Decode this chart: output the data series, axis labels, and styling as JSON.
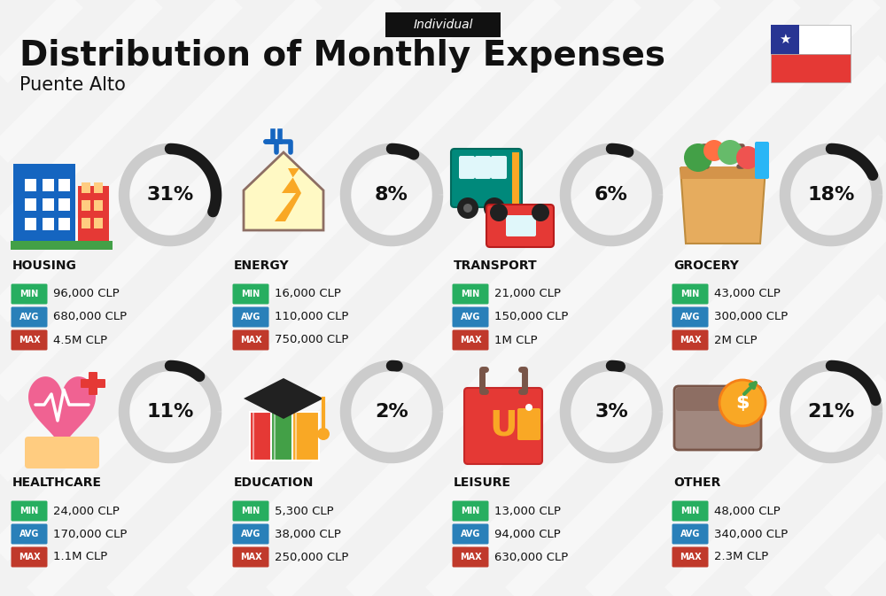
{
  "title": "Distribution of Monthly Expenses",
  "subtitle": "Puente Alto",
  "tag": "Individual",
  "bg_color": "#f2f2f2",
  "categories": [
    {
      "name": "HOUSING",
      "pct": 31,
      "icon": "housing",
      "min": "96,000 CLP",
      "avg": "680,000 CLP",
      "max": "4.5M CLP",
      "row": 0,
      "col": 0
    },
    {
      "name": "ENERGY",
      "pct": 8,
      "icon": "energy",
      "min": "16,000 CLP",
      "avg": "110,000 CLP",
      "max": "750,000 CLP",
      "row": 0,
      "col": 1
    },
    {
      "name": "TRANSPORT",
      "pct": 6,
      "icon": "transport",
      "min": "21,000 CLP",
      "avg": "150,000 CLP",
      "max": "1M CLP",
      "row": 0,
      "col": 2
    },
    {
      "name": "GROCERY",
      "pct": 18,
      "icon": "grocery",
      "min": "43,000 CLP",
      "avg": "300,000 CLP",
      "max": "2M CLP",
      "row": 0,
      "col": 3
    },
    {
      "name": "HEALTHCARE",
      "pct": 11,
      "icon": "healthcare",
      "min": "24,000 CLP",
      "avg": "170,000 CLP",
      "max": "1.1M CLP",
      "row": 1,
      "col": 0
    },
    {
      "name": "EDUCATION",
      "pct": 2,
      "icon": "education",
      "min": "5,300 CLP",
      "avg": "38,000 CLP",
      "max": "250,000 CLP",
      "row": 1,
      "col": 1
    },
    {
      "name": "LEISURE",
      "pct": 3,
      "icon": "leisure",
      "min": "13,000 CLP",
      "avg": "94,000 CLP",
      "max": "630,000 CLP",
      "row": 1,
      "col": 2
    },
    {
      "name": "OTHER",
      "pct": 21,
      "icon": "other",
      "min": "48,000 CLP",
      "avg": "340,000 CLP",
      "max": "2.3M CLP",
      "row": 1,
      "col": 3
    }
  ],
  "color_min": "#27ae60",
  "color_avg": "#2980b9",
  "color_max": "#c0392b",
  "color_dark": "#111111",
  "color_ring_fill": "#1a1a1a",
  "color_ring_bg": "#cccccc",
  "stripe_color": "#ffffff",
  "stripe_alpha": 0.45,
  "stripe_lw": 20
}
